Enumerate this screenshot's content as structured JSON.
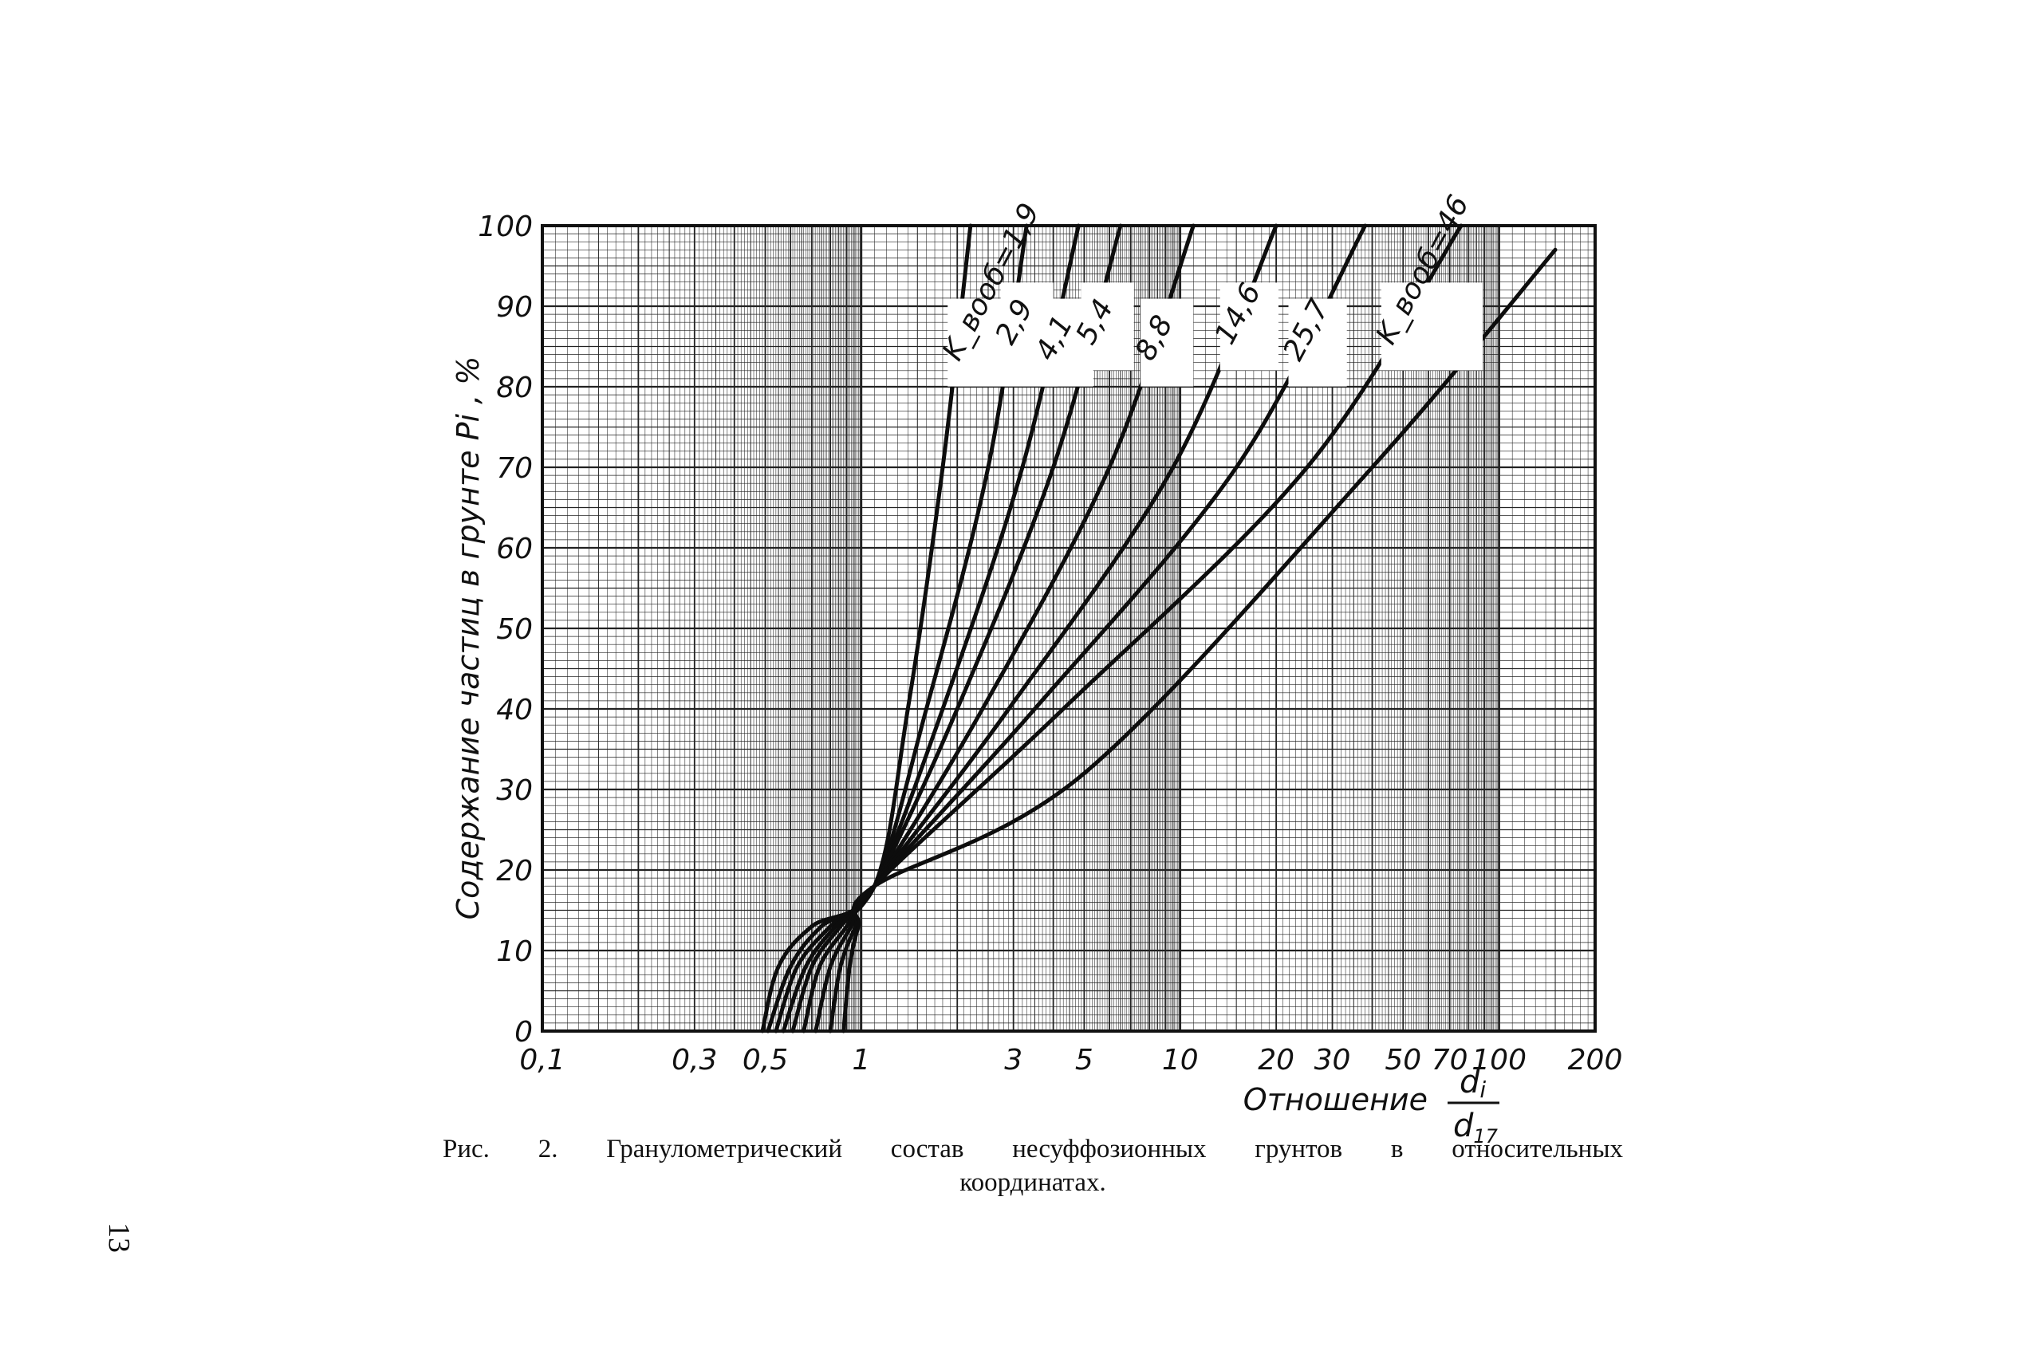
{
  "chart_data": {
    "type": "line",
    "x_scale": "log",
    "grid": true,
    "xlim": [
      0.1,
      200
    ],
    "ylim": [
      0,
      100
    ],
    "x_ticks": [
      "0,1",
      "0,3",
      "0,5",
      "1",
      "3",
      "5",
      "10",
      "20",
      "30",
      "50",
      "70",
      "100",
      "200"
    ],
    "y_ticks": [
      "0",
      "10",
      "20",
      "30",
      "40",
      "50",
      "60",
      "70",
      "80",
      "90",
      "100"
    ],
    "xlabel": "Отношение",
    "xlabel_fraction": {
      "numerator": "d_i",
      "denominator": "d_17"
    },
    "ylabel": "Содержание частиц в грунте Pi , %",
    "series": [
      {
        "name": "K_вооб = 1,9",
        "label": "K_вооб=1,9",
        "x": [
          0.49,
          0.55,
          0.7,
          1.1,
          1.4,
          1.8,
          2.2
        ],
        "y": [
          0,
          8,
          13,
          18,
          40,
          70,
          100
        ]
      },
      {
        "name": "2,9",
        "label": "2,9",
        "x": [
          0.51,
          0.6,
          0.75,
          1.1,
          1.6,
          2.5,
          3.3
        ],
        "y": [
          0,
          8,
          13,
          18,
          40,
          70,
          100
        ]
      },
      {
        "name": "4,1",
        "label": "4,1",
        "x": [
          0.54,
          0.63,
          0.8,
          1.1,
          1.8,
          3.2,
          4.8
        ],
        "y": [
          0,
          8,
          13,
          18,
          40,
          70,
          100
        ]
      },
      {
        "name": "5,4",
        "label": "5,4",
        "x": [
          0.57,
          0.67,
          0.83,
          1.1,
          2.0,
          4.0,
          6.5
        ],
        "y": [
          0,
          8,
          13,
          18,
          40,
          70,
          100
        ]
      },
      {
        "name": "8,8",
        "label": "8,8",
        "x": [
          0.61,
          0.7,
          0.86,
          1.1,
          2.4,
          6.0,
          11.0
        ],
        "y": [
          0,
          8,
          13,
          18,
          40,
          70,
          100
        ]
      },
      {
        "name": "14,6",
        "label": "14,6",
        "x": [
          0.66,
          0.74,
          0.9,
          1.1,
          2.9,
          9.5,
          20.0
        ],
        "y": [
          0,
          8,
          13,
          18,
          40,
          70,
          100
        ]
      },
      {
        "name": "25,7",
        "label": "25,7",
        "x": [
          0.72,
          0.8,
          0.93,
          1.1,
          3.5,
          15.0,
          38.0
        ],
        "y": [
          0,
          8,
          13,
          18,
          40,
          70,
          100
        ]
      },
      {
        "name": "K_вооб = 46",
        "label": "K_вооб=46",
        "x": [
          0.8,
          0.86,
          0.96,
          1.1,
          4.3,
          25.0,
          76.0
        ],
        "y": [
          0,
          8,
          13,
          18,
          40,
          70,
          100
        ]
      },
      {
        "name": "",
        "label": "",
        "x": [
          0.88,
          0.92,
          0.98,
          1.1,
          5.0,
          40.0,
          150.0
        ],
        "y": [
          0,
          8,
          13,
          18,
          32,
          70,
          97
        ]
      }
    ],
    "title": ""
  },
  "caption": {
    "line1": "Рис. 2. Гранулометрический состав несуффозионных грунтов в относительных",
    "line2": "координатах."
  },
  "page_number": "13"
}
